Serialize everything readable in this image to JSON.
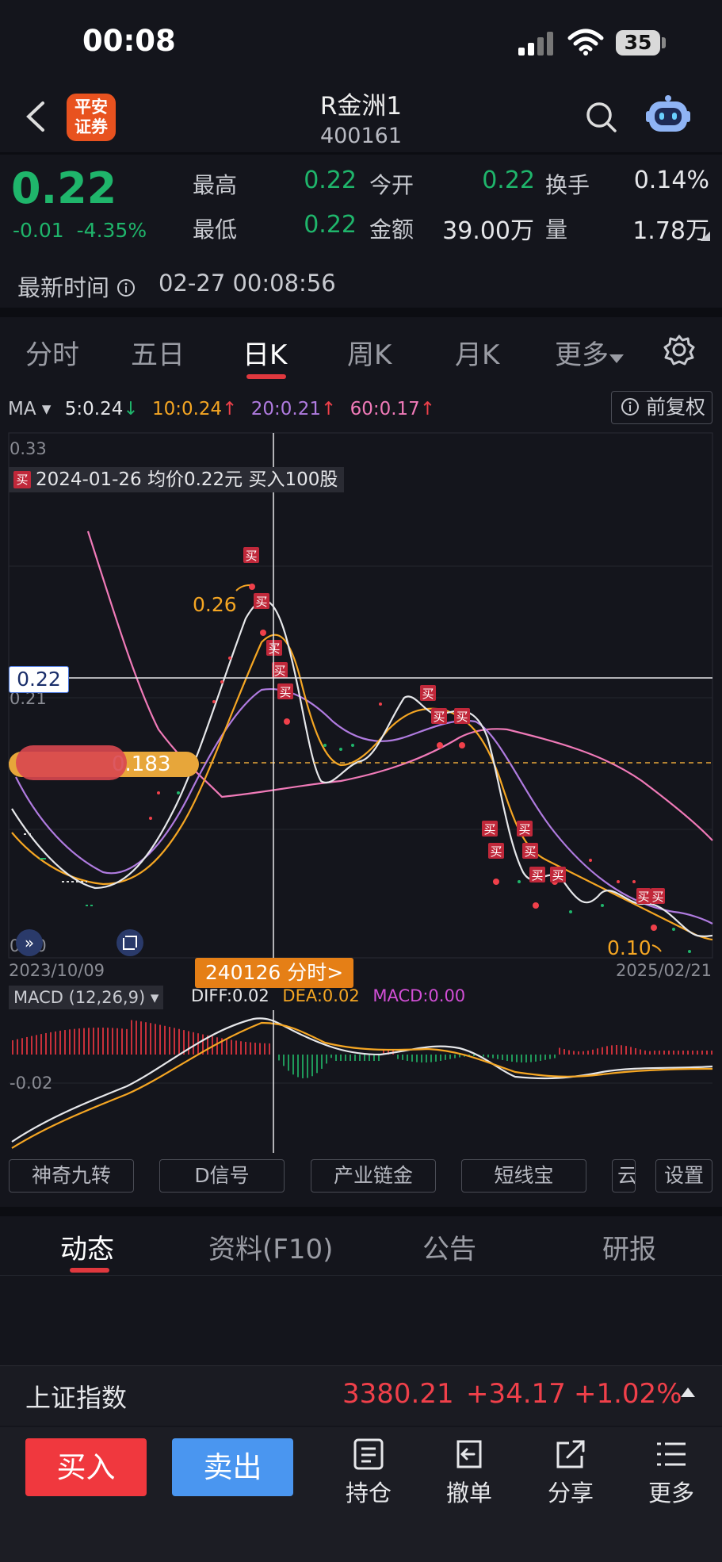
{
  "status_bar": {
    "time": "00:08",
    "battery": "35"
  },
  "header": {
    "logo_text": "平安\n证券",
    "logo_line1": "平安",
    "logo_line2": "证券",
    "stock_name": "R金洲1",
    "stock_code": "400161"
  },
  "quote": {
    "price": "0.22",
    "change": "-0.01",
    "change_pct": "-4.35%",
    "high_label": "最高",
    "high": "0.22",
    "open_label": "今开",
    "open": "0.22",
    "turnover_label": "换手",
    "turnover": "0.14%",
    "low_label": "最低",
    "low": "0.22",
    "amount_label": "金额",
    "amount": "39.00万",
    "volume_label": "量",
    "volume": "1.78万",
    "update_label": "最新时间",
    "update_time": "02-27 00:08:56"
  },
  "kline_tabs": [
    "分时",
    "五日",
    "日K",
    "周K",
    "月K",
    "更多"
  ],
  "ma_row": {
    "label": "MA",
    "ma5": "5:0.24",
    "ma10": "10:0.24",
    "ma20": "20:0.21",
    "ma60": "60:0.17",
    "ma5_color": "#e6e7ea",
    "ma10_color": "#f5a623",
    "ma20_color": "#b07be0",
    "ma60_color": "#f07ab8",
    "adjust": "前复权"
  },
  "chart": {
    "y_top": "0.33",
    "y_mid": "0.21",
    "y_bottom": "0.10",
    "crosshair_price": "0.22",
    "tooltip_badge": "买",
    "tooltip": "2024-01-26 均价0.22元 买入100股",
    "cost_line": "0.183",
    "cost_prefix": "成本",
    "high_label": "0.26",
    "low_label": "0.10",
    "date_start": "2023/10/09",
    "date_end": "2025/02/21",
    "date_button": "240126 分时>",
    "buy_mark": "买"
  },
  "macd": {
    "label": "MACD (12,26,9)",
    "diff": "DIFF:0.02",
    "dea": "DEA:0.02",
    "macd": "MACD:0.00",
    "axis_label": "-0.02"
  },
  "indicator_buttons": [
    "神奇九转",
    "D信号",
    "产业链金",
    "短线宝",
    "云",
    "设置"
  ],
  "footer_tabs": [
    "动态",
    "资料(F10)",
    "公告",
    "研报"
  ],
  "index_bar": {
    "name": "上证指数",
    "value": "3380.21",
    "change": "+34.17",
    "change_pct": "+1.02%"
  },
  "bottom_bar": {
    "buy": "买入",
    "sell": "卖出",
    "position": "持仓",
    "cancel": "撤单",
    "share": "分享",
    "more": "更多"
  },
  "colors": {
    "up": "#f0404a",
    "down": "#1fb56b",
    "accent": "#e0383e",
    "background": "#14151c"
  }
}
